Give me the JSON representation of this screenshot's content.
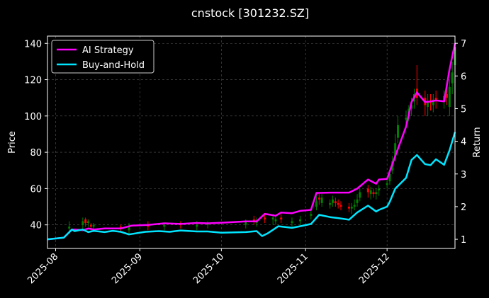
{
  "chart_data": {
    "type": "line",
    "title": "cnstock [301232.SZ]",
    "ylabel": "Price",
    "ylabel_right": "Return",
    "ylim": [
      27,
      144
    ],
    "ylim_right": [
      0.72,
      7.22
    ],
    "xlim": [
      "2025-07-29",
      "2025-12-26"
    ],
    "yticks": [
      40,
      60,
      80,
      100,
      120,
      140
    ],
    "yticks_right": [
      1,
      2,
      3,
      4,
      5,
      6,
      7
    ],
    "xticks": [
      "2025-08",
      "2025-09",
      "2025-10",
      "2025-11",
      "2025-12"
    ],
    "xtick_dates": [
      "2025-08-01",
      "2025-09-01",
      "2025-10-01",
      "2025-11-01",
      "2025-12-01"
    ],
    "grid": true,
    "legend": "top-left",
    "background": "#000000",
    "up_color": "#008000",
    "down_color": "#ff0000",
    "series": [
      {
        "name": "AI Strategy",
        "axis": "right",
        "color": "#ff00ff",
        "x": [
          "2025-07-29",
          "2025-08-04",
          "2025-08-07",
          "2025-08-08",
          "2025-08-11",
          "2025-08-13",
          "2025-08-15",
          "2025-08-19",
          "2025-08-25",
          "2025-08-29",
          "2025-09-04",
          "2025-09-10",
          "2025-09-16",
          "2025-09-22",
          "2025-09-26",
          "2025-10-02",
          "2025-10-10",
          "2025-10-14",
          "2025-10-17",
          "2025-10-21",
          "2025-10-23",
          "2025-10-27",
          "2025-10-30",
          "2025-11-03",
          "2025-11-05",
          "2025-11-06",
          "2025-11-10",
          "2025-11-17",
          "2025-11-20",
          "2025-11-24",
          "2025-11-27",
          "2025-11-28",
          "2025-12-01",
          "2025-12-04",
          "2025-12-08",
          "2025-12-10",
          "2025-12-12",
          "2025-12-15",
          "2025-12-17",
          "2025-12-19",
          "2025-12-22",
          "2025-12-24",
          "2025-12-26"
        ],
        "values": [
          1.0,
          1.05,
          1.3,
          1.3,
          1.28,
          1.33,
          1.3,
          1.33,
          1.33,
          1.42,
          1.44,
          1.49,
          1.47,
          1.5,
          1.49,
          1.51,
          1.55,
          1.55,
          1.78,
          1.72,
          1.82,
          1.8,
          1.87,
          1.9,
          2.42,
          2.42,
          2.43,
          2.43,
          2.55,
          2.83,
          2.7,
          2.83,
          2.85,
          3.55,
          4.45,
          5.2,
          5.5,
          5.2,
          5.22,
          5.25,
          5.22,
          6.2,
          7.0
        ]
      },
      {
        "name": "Buy-and-Hold",
        "axis": "right",
        "color": "#00e5ff",
        "x": [
          "2025-07-29",
          "2025-08-04",
          "2025-08-07",
          "2025-08-08",
          "2025-08-11",
          "2025-08-13",
          "2025-08-15",
          "2025-08-19",
          "2025-08-22",
          "2025-08-25",
          "2025-08-28",
          "2025-09-03",
          "2025-09-08",
          "2025-09-12",
          "2025-09-16",
          "2025-09-22",
          "2025-09-26",
          "2025-10-01",
          "2025-10-10",
          "2025-10-14",
          "2025-10-16",
          "2025-10-18",
          "2025-10-22",
          "2025-10-27",
          "2025-10-30",
          "2025-11-03",
          "2025-11-06",
          "2025-11-10",
          "2025-11-13",
          "2025-11-17",
          "2025-11-20",
          "2025-11-24",
          "2025-11-27",
          "2025-11-28",
          "2025-12-01",
          "2025-12-02",
          "2025-12-04",
          "2025-12-08",
          "2025-12-10",
          "2025-12-12",
          "2025-12-15",
          "2025-12-17",
          "2025-12-19",
          "2025-12-22",
          "2025-12-24",
          "2025-12-26"
        ],
        "values": [
          1.0,
          1.05,
          1.3,
          1.25,
          1.3,
          1.22,
          1.26,
          1.22,
          1.26,
          1.23,
          1.15,
          1.23,
          1.25,
          1.23,
          1.27,
          1.24,
          1.24,
          1.2,
          1.22,
          1.25,
          1.1,
          1.18,
          1.4,
          1.35,
          1.4,
          1.47,
          1.75,
          1.68,
          1.65,
          1.6,
          1.82,
          2.03,
          1.85,
          1.9,
          2.0,
          2.15,
          2.55,
          2.88,
          3.43,
          3.58,
          3.3,
          3.27,
          3.45,
          3.28,
          3.72,
          4.28
        ]
      }
    ],
    "candles": {
      "dates": [
        "2025-08-06",
        "2025-08-11",
        "2025-08-12",
        "2025-08-13",
        "2025-08-14",
        "2025-08-15",
        "2025-08-25",
        "2025-08-28",
        "2025-09-04",
        "2025-09-10",
        "2025-09-16",
        "2025-09-22",
        "2025-09-26",
        "2025-10-10",
        "2025-10-13",
        "2025-10-14",
        "2025-10-17",
        "2025-10-20",
        "2025-10-21",
        "2025-10-23",
        "2025-10-27",
        "2025-10-30",
        "2025-11-03",
        "2025-11-05",
        "2025-11-06",
        "2025-11-07",
        "2025-11-10",
        "2025-11-11",
        "2025-11-12",
        "2025-11-13",
        "2025-11-14",
        "2025-11-17",
        "2025-11-18",
        "2025-11-19",
        "2025-11-20",
        "2025-11-21",
        "2025-11-24",
        "2025-11-25",
        "2025-11-26",
        "2025-11-27",
        "2025-11-28",
        "2025-12-01",
        "2025-12-02",
        "2025-12-03",
        "2025-12-04",
        "2025-12-05",
        "2025-12-08",
        "2025-12-09",
        "2025-12-10",
        "2025-12-11",
        "2025-12-12",
        "2025-12-15",
        "2025-12-16",
        "2025-12-17",
        "2025-12-18",
        "2025-12-19",
        "2025-12-22",
        "2025-12-23",
        "2025-12-24",
        "2025-12-25",
        "2025-12-26"
      ],
      "open": [
        38,
        40,
        43,
        41,
        40,
        39,
        39,
        37,
        40,
        39,
        41,
        39,
        40,
        40,
        43,
        41,
        44,
        43,
        42,
        44,
        41,
        42,
        45,
        50,
        55,
        52,
        51,
        52,
        53,
        52,
        51,
        50,
        49,
        50,
        52,
        55,
        60,
        57,
        58,
        57,
        59,
        62,
        64,
        70,
        78,
        88,
        98,
        100,
        104,
        108,
        115,
        110,
        105,
        108,
        106,
        110,
        108,
        112,
        105,
        118,
        128
      ],
      "close": [
        39,
        42,
        41,
        42,
        39,
        40,
        38,
        39,
        39,
        40,
        40,
        40,
        41,
        42,
        42,
        42,
        43,
        44,
        43,
        43,
        42,
        43,
        46,
        53,
        54,
        55,
        52,
        54,
        52,
        51,
        50,
        49,
        50,
        51,
        54,
        58,
        58,
        59,
        57,
        58,
        60,
        63,
        68,
        75,
        85,
        95,
        99,
        104,
        106,
        112,
        110,
        106,
        108,
        107,
        109,
        109,
        111,
        110,
        116,
        124,
        138
      ],
      "high": [
        42,
        44,
        44,
        43,
        41,
        41,
        40,
        41,
        42,
        41,
        42,
        42,
        42,
        43,
        45,
        44,
        46,
        46,
        45,
        46,
        44,
        45,
        48,
        56,
        57,
        57,
        54,
        56,
        55,
        54,
        53,
        52,
        52,
        54,
        57,
        60,
        62,
        61,
        60,
        60,
        62,
        66,
        70,
        78,
        90,
        100,
        103,
        106,
        110,
        115,
        128,
        114,
        112,
        112,
        112,
        114,
        114,
        116,
        120,
        130,
        142
      ],
      "low": [
        36,
        38,
        39,
        39,
        37,
        37,
        36,
        35,
        37,
        37,
        38,
        37,
        38,
        38,
        40,
        39,
        41,
        40,
        40,
        41,
        39,
        40,
        43,
        48,
        51,
        50,
        49,
        50,
        50,
        49,
        48,
        47,
        46,
        48,
        50,
        53,
        55,
        54,
        55,
        54,
        56,
        60,
        62,
        68,
        75,
        85,
        95,
        97,
        100,
        104,
        106,
        100,
        100,
        103,
        102,
        104,
        104,
        106,
        100,
        112,
        120
      ]
    }
  }
}
